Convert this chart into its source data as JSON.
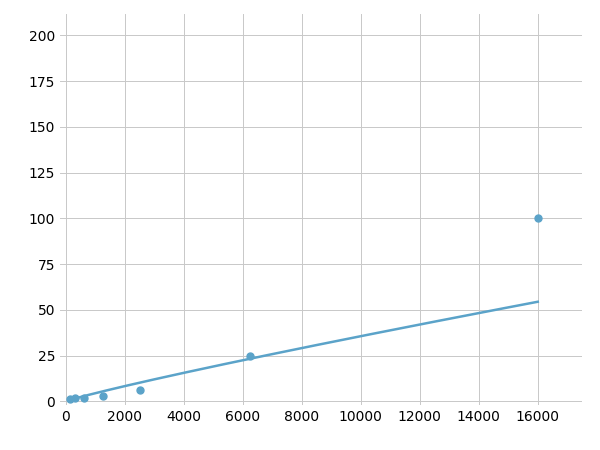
{
  "x": [
    156,
    313,
    625,
    1250,
    2500,
    6250,
    16000
  ],
  "y": [
    1.5,
    2,
    2,
    3,
    6,
    25,
    100
  ],
  "line_color": "#5ba3c9",
  "marker_color": "#5ba3c9",
  "marker_size": 5,
  "line_width": 1.8,
  "xlim": [
    -200,
    17500
  ],
  "ylim": [
    -2,
    212
  ],
  "xticks": [
    0,
    2000,
    4000,
    6000,
    8000,
    10000,
    12000,
    14000,
    16000
  ],
  "yticks": [
    0,
    25,
    50,
    75,
    100,
    125,
    150,
    175,
    200
  ],
  "grid_color": "#c8c8c8",
  "grid_linewidth": 0.7,
  "background_color": "#ffffff",
  "tick_fontsize": 10,
  "figsize": [
    6.0,
    4.5
  ],
  "dpi": 100
}
